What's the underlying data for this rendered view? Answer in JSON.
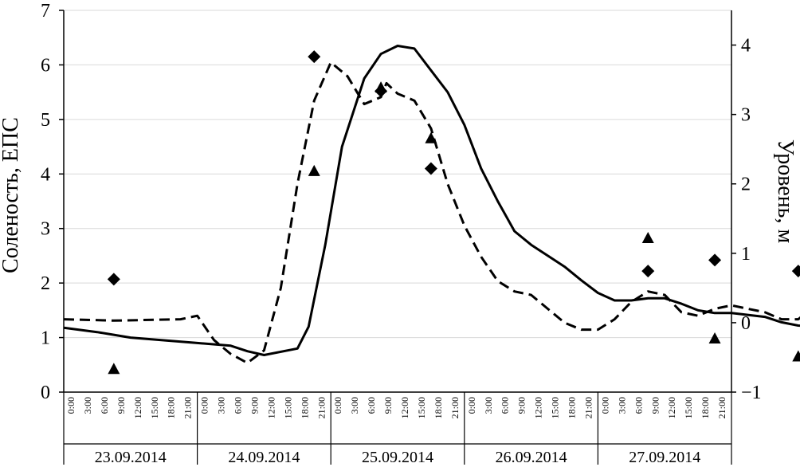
{
  "chart_data": {
    "type": "line",
    "title": "",
    "ylabel_left": "Соленость, ЕПС",
    "ylabel_right": "Уровень, м",
    "y_left_range": [
      0,
      7
    ],
    "y_left_ticks": [
      "0",
      "1",
      "2",
      "3",
      "4",
      "5",
      "6",
      "7"
    ],
    "y_right_range": [
      -1,
      4.5
    ],
    "y_right_ticks": [
      "−1",
      "0",
      "1",
      "2",
      "3",
      "4"
    ],
    "grid": true,
    "hour_labels": [
      "0:00",
      "3:00",
      "6:00",
      "9:00",
      "12:00",
      "15:00",
      "18:00",
      "21:00"
    ],
    "dates": [
      "23.09.2014",
      "24.09.2014",
      "25.09.2014",
      "26.09.2014",
      "27.09.2014"
    ],
    "series": [
      {
        "style": "solid",
        "axis": "left",
        "points": [
          [
            0,
            1.18
          ],
          [
            6,
            1.1
          ],
          [
            9,
            1.05
          ],
          [
            12,
            1.0
          ],
          [
            18,
            0.95
          ],
          [
            24,
            0.9
          ],
          [
            30,
            0.85
          ],
          [
            33,
            0.75
          ],
          [
            36,
            0.68
          ],
          [
            42,
            0.8
          ],
          [
            44,
            1.2
          ],
          [
            47,
            2.7
          ],
          [
            50,
            4.5
          ],
          [
            54,
            5.75
          ],
          [
            57,
            6.2
          ],
          [
            60,
            6.35
          ],
          [
            63,
            6.3
          ],
          [
            66,
            5.9
          ],
          [
            69,
            5.5
          ],
          [
            72,
            4.9
          ],
          [
            75,
            4.1
          ],
          [
            78,
            3.5
          ],
          [
            81,
            2.95
          ],
          [
            84,
            2.7
          ],
          [
            87,
            2.5
          ],
          [
            90,
            2.3
          ],
          [
            93,
            2.05
          ],
          [
            96,
            1.82
          ],
          [
            99,
            1.68
          ],
          [
            102,
            1.68
          ],
          [
            105,
            1.72
          ],
          [
            108,
            1.72
          ],
          [
            111,
            1.62
          ],
          [
            114,
            1.5
          ],
          [
            117,
            1.45
          ],
          [
            120,
            1.45
          ],
          [
            126,
            1.38
          ],
          [
            129,
            1.28
          ],
          [
            132,
            1.22
          ],
          [
            138,
            1.2
          ],
          [
            144,
            1.15
          ],
          [
            150,
            1.1
          ],
          [
            156,
            1.07
          ],
          [
            161,
            1.03
          ]
        ]
      },
      {
        "style": "dashed",
        "axis": "right",
        "points": [
          [
            0,
            0.05
          ],
          [
            9,
            0.03
          ],
          [
            21,
            0.05
          ],
          [
            24,
            0.1
          ],
          [
            27,
            -0.25
          ],
          [
            30,
            -0.45
          ],
          [
            33,
            -0.58
          ],
          [
            36,
            -0.4
          ],
          [
            39,
            0.5
          ],
          [
            42,
            2.0
          ],
          [
            45,
            3.2
          ],
          [
            48,
            3.75
          ],
          [
            51,
            3.55
          ],
          [
            54,
            3.15
          ],
          [
            57,
            3.25
          ],
          [
            58,
            3.45
          ],
          [
            60,
            3.3
          ],
          [
            63,
            3.2
          ],
          [
            66,
            2.8
          ],
          [
            69,
            2.0
          ],
          [
            72,
            1.4
          ],
          [
            75,
            0.95
          ],
          [
            78,
            0.6
          ],
          [
            81,
            0.45
          ],
          [
            84,
            0.4
          ],
          [
            87,
            0.2
          ],
          [
            90,
            0.0
          ],
          [
            93,
            -0.1
          ],
          [
            96,
            -0.1
          ],
          [
            99,
            0.05
          ],
          [
            102,
            0.3
          ],
          [
            105,
            0.45
          ],
          [
            108,
            0.4
          ],
          [
            111,
            0.15
          ],
          [
            114,
            0.1
          ],
          [
            117,
            0.2
          ],
          [
            120,
            0.25
          ],
          [
            123,
            0.2
          ],
          [
            126,
            0.15
          ],
          [
            129,
            0.05
          ],
          [
            132,
            0.05
          ],
          [
            135,
            0.25
          ],
          [
            138,
            0.3
          ],
          [
            141,
            0.2
          ],
          [
            144,
            0.12
          ],
          [
            150,
            0.1
          ],
          [
            156,
            0.12
          ],
          [
            158,
            0.15
          ],
          [
            161,
            0.08
          ]
        ]
      },
      {
        "style": "diamond",
        "axis": "left",
        "points": [
          [
            9,
            2.07
          ],
          [
            45,
            6.15
          ],
          [
            57,
            5.52
          ],
          [
            66,
            4.1
          ],
          [
            105,
            2.22
          ],
          [
            117,
            2.42
          ],
          [
            132,
            2.22
          ]
        ]
      },
      {
        "style": "triangle",
        "axis": "left",
        "points": [
          [
            9,
            0.42
          ],
          [
            45,
            4.05
          ],
          [
            57,
            5.58
          ],
          [
            66,
            4.65
          ],
          [
            105,
            2.82
          ],
          [
            117,
            0.98
          ],
          [
            132,
            0.65
          ]
        ]
      }
    ]
  }
}
